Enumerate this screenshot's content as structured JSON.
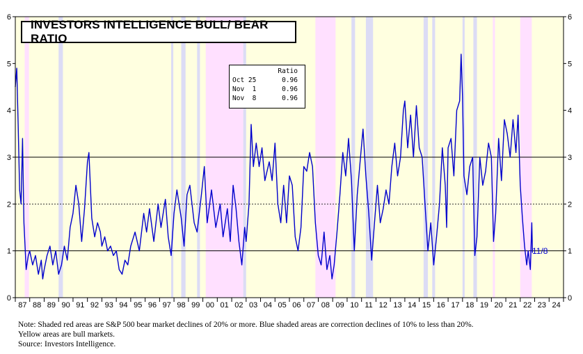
{
  "chart_data": {
    "type": "line",
    "title": "INVESTORS INTELLIGENCE BULL/ BEAR RATIO",
    "ylim": [
      0,
      6
    ],
    "yticks": [
      "0",
      "1",
      "2",
      "3",
      "4",
      "5",
      "6"
    ],
    "x_range": [
      1987.0,
      2025.0
    ],
    "x_ticks": [
      "87",
      "88",
      "89",
      "90",
      "91",
      "92",
      "93",
      "94",
      "95",
      "96",
      "97",
      "98",
      "99",
      "00",
      "01",
      "02",
      "03",
      "04",
      "05",
      "06",
      "07",
      "08",
      "09",
      "10",
      "11",
      "12",
      "13",
      "14",
      "15",
      "16",
      "17",
      "18",
      "19",
      "20",
      "21",
      "22",
      "23",
      "24"
    ],
    "reference_lines": [
      {
        "y": 1,
        "style": "solid"
      },
      {
        "y": 2,
        "style": "dotted"
      },
      {
        "y": 3,
        "style": "solid"
      }
    ],
    "regions": {
      "bull_color": "#ffffe0",
      "bear_color": "#ffe0ff",
      "correction_color": "#dcdcf5",
      "bear": [
        [
          1987.65,
          1987.95
        ],
        [
          2000.2,
          2002.8
        ],
        [
          2007.8,
          2009.2
        ],
        [
          2020.1,
          2020.25
        ],
        [
          2022.0,
          2022.8
        ]
      ],
      "correction": [
        [
          1990.0,
          1990.3
        ],
        [
          1997.8,
          1997.95
        ],
        [
          1998.5,
          1998.8
        ],
        [
          1999.6,
          1999.8
        ],
        [
          2002.8,
          2003.0
        ],
        [
          2010.3,
          2010.55
        ],
        [
          2011.3,
          2011.8
        ],
        [
          2015.3,
          2015.6
        ],
        [
          2015.9,
          2016.1
        ],
        [
          2018.0,
          2018.15
        ],
        [
          2018.75,
          2019.0
        ]
      ]
    },
    "series": [
      {
        "name": "Bull/Bear Ratio",
        "color": "#0000cc",
        "points": [
          [
            1987.0,
            4.5
          ],
          [
            1987.1,
            4.9
          ],
          [
            1987.2,
            3.7
          ],
          [
            1987.3,
            2.3
          ],
          [
            1987.4,
            2.0
          ],
          [
            1987.5,
            3.4
          ],
          [
            1987.6,
            1.6
          ],
          [
            1987.75,
            0.6
          ],
          [
            1987.9,
            0.9
          ],
          [
            1988.0,
            1.0
          ],
          [
            1988.2,
            0.7
          ],
          [
            1988.4,
            0.9
          ],
          [
            1988.6,
            0.5
          ],
          [
            1988.8,
            0.8
          ],
          [
            1988.9,
            0.4
          ],
          [
            1989.0,
            0.6
          ],
          [
            1989.2,
            0.9
          ],
          [
            1989.4,
            1.1
          ],
          [
            1989.6,
            0.7
          ],
          [
            1989.8,
            1.0
          ],
          [
            1990.0,
            0.5
          ],
          [
            1990.2,
            0.7
          ],
          [
            1990.4,
            1.1
          ],
          [
            1990.6,
            0.8
          ],
          [
            1990.8,
            1.5
          ],
          [
            1991.0,
            1.8
          ],
          [
            1991.2,
            2.4
          ],
          [
            1991.4,
            2.0
          ],
          [
            1991.6,
            1.2
          ],
          [
            1991.8,
            1.9
          ],
          [
            1992.0,
            2.9
          ],
          [
            1992.1,
            3.1
          ],
          [
            1992.3,
            1.7
          ],
          [
            1992.5,
            1.3
          ],
          [
            1992.7,
            1.6
          ],
          [
            1992.9,
            1.4
          ],
          [
            1993.0,
            1.1
          ],
          [
            1993.2,
            1.3
          ],
          [
            1993.4,
            1.0
          ],
          [
            1993.6,
            1.1
          ],
          [
            1993.8,
            0.9
          ],
          [
            1994.0,
            1.0
          ],
          [
            1994.2,
            0.6
          ],
          [
            1994.4,
            0.5
          ],
          [
            1994.6,
            0.8
          ],
          [
            1994.8,
            0.7
          ],
          [
            1995.0,
            1.1
          ],
          [
            1995.3,
            1.4
          ],
          [
            1995.6,
            1.0
          ],
          [
            1995.9,
            1.8
          ],
          [
            1996.1,
            1.4
          ],
          [
            1996.3,
            1.9
          ],
          [
            1996.6,
            1.2
          ],
          [
            1996.9,
            2.0
          ],
          [
            1997.1,
            1.5
          ],
          [
            1997.4,
            2.1
          ],
          [
            1997.6,
            1.3
          ],
          [
            1997.8,
            0.9
          ],
          [
            1998.0,
            1.8
          ],
          [
            1998.2,
            2.3
          ],
          [
            1998.5,
            1.7
          ],
          [
            1998.7,
            1.1
          ],
          [
            1998.9,
            2.2
          ],
          [
            1999.1,
            2.4
          ],
          [
            1999.4,
            1.6
          ],
          [
            1999.6,
            1.4
          ],
          [
            1999.9,
            2.2
          ],
          [
            2000.1,
            2.8
          ],
          [
            2000.3,
            1.6
          ],
          [
            2000.6,
            2.3
          ],
          [
            2000.9,
            1.5
          ],
          [
            2001.2,
            2.0
          ],
          [
            2001.4,
            1.3
          ],
          [
            2001.7,
            1.9
          ],
          [
            2001.9,
            1.2
          ],
          [
            2002.1,
            2.4
          ],
          [
            2002.3,
            1.9
          ],
          [
            2002.5,
            1.2
          ],
          [
            2002.7,
            0.7
          ],
          [
            2002.9,
            1.5
          ],
          [
            2003.0,
            1.2
          ],
          [
            2003.2,
            2.0
          ],
          [
            2003.35,
            3.7
          ],
          [
            2003.5,
            2.8
          ],
          [
            2003.7,
            3.3
          ],
          [
            2003.9,
            2.8
          ],
          [
            2004.1,
            3.2
          ],
          [
            2004.3,
            2.5
          ],
          [
            2004.6,
            2.9
          ],
          [
            2004.8,
            2.5
          ],
          [
            2005.0,
            3.3
          ],
          [
            2005.2,
            2.0
          ],
          [
            2005.4,
            1.6
          ],
          [
            2005.6,
            2.4
          ],
          [
            2005.8,
            1.6
          ],
          [
            2006.0,
            2.6
          ],
          [
            2006.2,
            2.4
          ],
          [
            2006.4,
            1.3
          ],
          [
            2006.6,
            1.0
          ],
          [
            2006.8,
            1.5
          ],
          [
            2007.0,
            2.8
          ],
          [
            2007.2,
            2.7
          ],
          [
            2007.4,
            3.1
          ],
          [
            2007.6,
            2.8
          ],
          [
            2007.8,
            1.6
          ],
          [
            2008.0,
            0.9
          ],
          [
            2008.2,
            0.7
          ],
          [
            2008.4,
            1.4
          ],
          [
            2008.6,
            0.6
          ],
          [
            2008.8,
            0.9
          ],
          [
            2008.95,
            0.4
          ],
          [
            2009.1,
            0.7
          ],
          [
            2009.3,
            1.4
          ],
          [
            2009.5,
            2.2
          ],
          [
            2009.7,
            3.1
          ],
          [
            2009.9,
            2.6
          ],
          [
            2010.1,
            3.4
          ],
          [
            2010.3,
            2.5
          ],
          [
            2010.5,
            1.0
          ],
          [
            2010.7,
            2.2
          ],
          [
            2010.9,
            2.9
          ],
          [
            2011.1,
            3.6
          ],
          [
            2011.3,
            2.6
          ],
          [
            2011.5,
            1.8
          ],
          [
            2011.7,
            0.8
          ],
          [
            2011.9,
            1.6
          ],
          [
            2012.1,
            2.4
          ],
          [
            2012.3,
            1.6
          ],
          [
            2012.5,
            1.9
          ],
          [
            2012.7,
            2.3
          ],
          [
            2012.9,
            2.0
          ],
          [
            2013.1,
            2.8
          ],
          [
            2013.3,
            3.3
          ],
          [
            2013.5,
            2.6
          ],
          [
            2013.7,
            3.0
          ],
          [
            2013.9,
            4.0
          ],
          [
            2014.0,
            4.2
          ],
          [
            2014.2,
            3.2
          ],
          [
            2014.4,
            3.9
          ],
          [
            2014.6,
            3.0
          ],
          [
            2014.8,
            4.1
          ],
          [
            2015.0,
            3.2
          ],
          [
            2015.2,
            3.0
          ],
          [
            2015.4,
            2.0
          ],
          [
            2015.6,
            1.0
          ],
          [
            2015.8,
            1.6
          ],
          [
            2016.0,
            0.7
          ],
          [
            2016.2,
            1.3
          ],
          [
            2016.4,
            2.0
          ],
          [
            2016.6,
            3.2
          ],
          [
            2016.8,
            2.4
          ],
          [
            2016.9,
            1.5
          ],
          [
            2017.0,
            3.2
          ],
          [
            2017.2,
            3.4
          ],
          [
            2017.4,
            2.6
          ],
          [
            2017.6,
            4.0
          ],
          [
            2017.8,
            4.2
          ],
          [
            2017.9,
            5.2
          ],
          [
            2018.0,
            4.3
          ],
          [
            2018.1,
            2.6
          ],
          [
            2018.3,
            2.2
          ],
          [
            2018.5,
            2.8
          ],
          [
            2018.7,
            3.0
          ],
          [
            2018.85,
            0.9
          ],
          [
            2019.0,
            1.3
          ],
          [
            2019.2,
            3.0
          ],
          [
            2019.4,
            2.4
          ],
          [
            2019.6,
            2.7
          ],
          [
            2019.8,
            3.3
          ],
          [
            2020.0,
            3.0
          ],
          [
            2020.15,
            1.2
          ],
          [
            2020.3,
            1.8
          ],
          [
            2020.5,
            3.4
          ],
          [
            2020.7,
            2.5
          ],
          [
            2020.9,
            3.8
          ],
          [
            2021.1,
            3.5
          ],
          [
            2021.3,
            3.0
          ],
          [
            2021.5,
            3.8
          ],
          [
            2021.7,
            3.1
          ],
          [
            2021.85,
            3.9
          ],
          [
            2022.0,
            2.4
          ],
          [
            2022.15,
            1.7
          ],
          [
            2022.3,
            1.1
          ],
          [
            2022.45,
            0.7
          ],
          [
            2022.55,
            1.0
          ],
          [
            2022.7,
            0.6
          ],
          [
            2022.8,
            1.6
          ],
          [
            2022.85,
            0.96
          ]
        ]
      }
    ],
    "last_label": "11/8",
    "legend_table": {
      "header": "Ratio",
      "rows": [
        {
          "date": "Oct 25",
          "value": "0.96"
        },
        {
          "date": "Nov  1",
          "value": "0.96"
        },
        {
          "date": "Nov  8",
          "value": "0.96"
        }
      ]
    },
    "notes": [
      "Note: Shaded red areas are S&P 500 bear market declines of 20% or more.  Blue shaded areas are correction declines of 10% to less than 20%.",
      "Yellow areas are bull markets.",
      "Source: Investors Intelligence."
    ]
  }
}
